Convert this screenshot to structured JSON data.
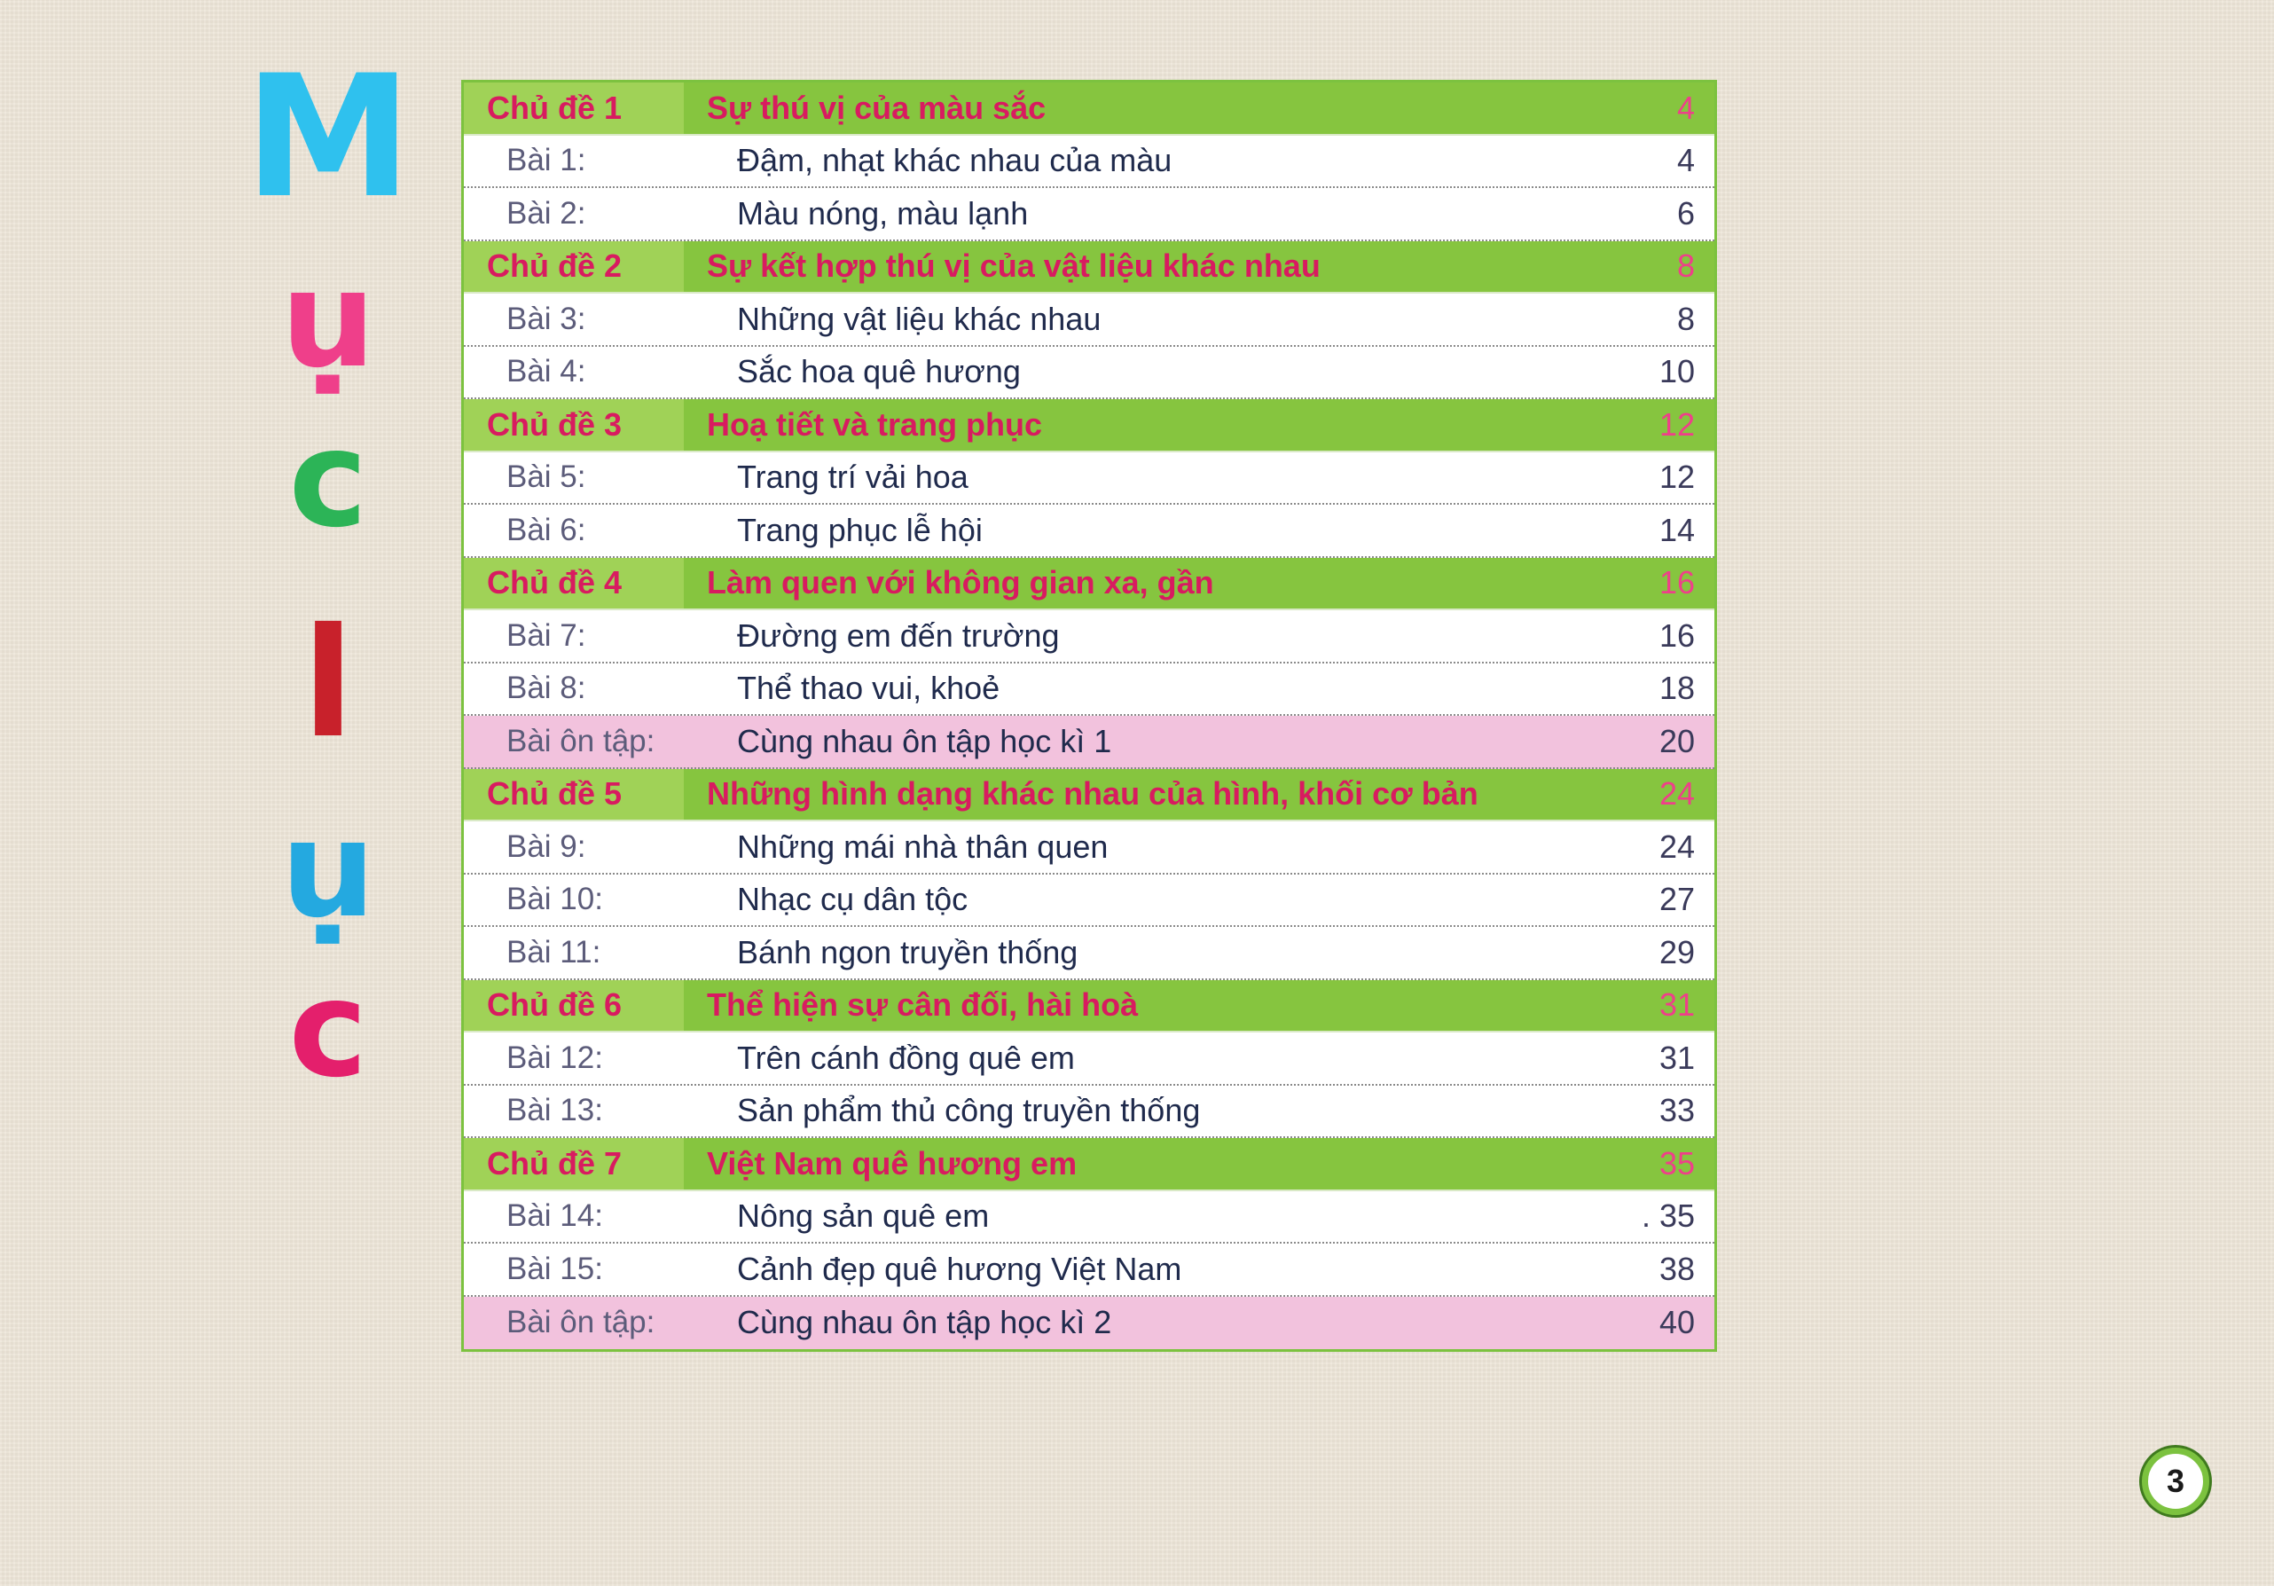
{
  "title_letters": [
    "M",
    "ụ",
    "c",
    "l",
    "ụ",
    "c"
  ],
  "rows": [
    {
      "type": "topic",
      "label": "Chủ đề 1",
      "title": "Sự thú vị của màu sắc",
      "page": "4"
    },
    {
      "type": "lesson",
      "label": "Bài 1:",
      "title": "Đậm, nhạt khác nhau của màu",
      "page": "4"
    },
    {
      "type": "lesson",
      "label": "Bài 2:",
      "title": "Màu nóng, màu lạnh",
      "page": "6"
    },
    {
      "type": "topic",
      "label": "Chủ đề 2",
      "title": "Sự kết hợp thú vị của vật liệu khác nhau",
      "page": "8"
    },
    {
      "type": "lesson",
      "label": "Bài 3:",
      "title": "Những vật liệu khác nhau",
      "page": "8"
    },
    {
      "type": "lesson",
      "label": "Bài 4:",
      "title": "Sắc hoa quê hương",
      "page": "10"
    },
    {
      "type": "topic",
      "label": "Chủ đề 3",
      "title": "Hoạ tiết và trang phục",
      "page": "12"
    },
    {
      "type": "lesson",
      "label": "Bài 5:",
      "title": "Trang trí vải hoa",
      "page": "12"
    },
    {
      "type": "lesson",
      "label": "Bài 6:",
      "title": "Trang phục lễ hội",
      "page": "14"
    },
    {
      "type": "topic",
      "label": "Chủ đề 4",
      "title": "Làm quen với không gian xa, gần",
      "page": "16"
    },
    {
      "type": "lesson",
      "label": "Bài 7:",
      "title": "Đường em đến trường",
      "page": "16"
    },
    {
      "type": "lesson",
      "label": "Bài 8:",
      "title": "Thể thao vui, khoẻ",
      "page": "18"
    },
    {
      "type": "review",
      "label": "Bài ôn tập:",
      "title": "Cùng nhau ôn tập học kì 1",
      "page": "20"
    },
    {
      "type": "topic",
      "label": "Chủ đề 5",
      "title": "Những hình dạng khác nhau của hình, khối cơ bản",
      "page": "24"
    },
    {
      "type": "lesson",
      "label": "Bài 9:",
      "title": "Những mái nhà thân quen",
      "page": "24"
    },
    {
      "type": "lesson",
      "label": "Bài 10:",
      "title": "Nhạc cụ dân tộc",
      "page": "27"
    },
    {
      "type": "lesson",
      "label": "Bài 11:",
      "title": "Bánh ngon truyền thống",
      "page": "29"
    },
    {
      "type": "topic",
      "label": "Chủ đề 6",
      "title": "Thể hiện sự cân đối, hài hoà",
      "page": "31"
    },
    {
      "type": "lesson",
      "label": "Bài 12:",
      "title": "Trên cánh đồng quê em",
      "page": "31"
    },
    {
      "type": "lesson",
      "label": "Bài 13:",
      "title": "Sản phẩm thủ công truyền thống",
      "page": "33"
    },
    {
      "type": "topic",
      "label": "Chủ đề 7",
      "title": "Việt Nam quê hương em",
      "page": "35"
    },
    {
      "type": "lesson",
      "label": "Bài 14:",
      "title": "Nông sản quê em",
      "page": ". 35"
    },
    {
      "type": "lesson",
      "label": "Bài 15:",
      "title": "Cảnh đẹp quê hương Việt Nam",
      "page": "38"
    },
    {
      "type": "review",
      "label": "Bài ôn tập:",
      "title": "Cùng nhau ôn tập học kì 2",
      "page": "40"
    }
  ],
  "page_number": "3"
}
